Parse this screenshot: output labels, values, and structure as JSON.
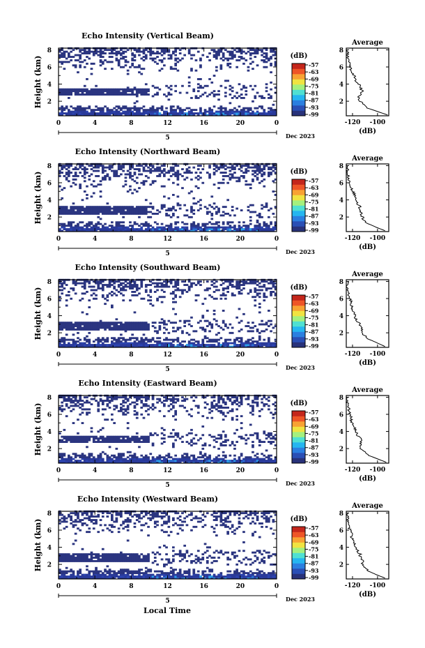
{
  "chart_data": {
    "type": "heatmap",
    "common": {
      "ylabel": "Height (km)",
      "yticks": [
        "2",
        "4",
        "6",
        "8"
      ],
      "xticks": [
        "0",
        "4",
        "8",
        "12",
        "16",
        "20",
        "0"
      ],
      "xlim": [
        0,
        24
      ],
      "ylim": [
        0.3,
        8.2
      ],
      "day_label": "5",
      "date_label": "Dec 2023",
      "xlabel": "Local Time",
      "colorbar_unit": "(dB)",
      "colorbar_ticks": [
        "-57",
        "-63",
        "-69",
        "-75",
        "-81",
        "-87",
        "-93",
        "-99"
      ],
      "colorbar_colors": [
        "#28327a",
        "#2a4fb5",
        "#2b7fe0",
        "#25b6f0",
        "#4fe0d2",
        "#a4f07e",
        "#f0e341",
        "#f8a233",
        "#ee5527",
        "#c4261b"
      ],
      "avg_title": "Average",
      "avg_xlabel": "(dB)",
      "avg_xticks": [
        "-120",
        "-100"
      ],
      "avg_yticks": [
        "2",
        "4",
        "6",
        "8"
      ],
      "avg_xlim": [
        -125,
        -91
      ],
      "avg_ylim": [
        0.3,
        8.2
      ]
    },
    "panels": [
      {
        "title": "Echo Intensity (Vertical Beam)",
        "seed": 11,
        "lower_layer": [
          2.6,
          3.5,
          9.8
        ],
        "avg_profile": [
          [
            0.4,
            -92
          ],
          [
            0.8,
            -100
          ],
          [
            1.2,
            -108
          ],
          [
            1.6,
            -111
          ],
          [
            2.0,
            -114
          ],
          [
            2.4,
            -115
          ],
          [
            2.8,
            -114
          ],
          [
            3.2,
            -112
          ],
          [
            3.6,
            -114
          ],
          [
            4.0,
            -115
          ],
          [
            4.4,
            -118
          ],
          [
            4.8,
            -118
          ],
          [
            5.2,
            -120
          ],
          [
            5.6,
            -121
          ],
          [
            6.0,
            -122
          ],
          [
            6.4,
            -123
          ],
          [
            6.8,
            -123
          ],
          [
            7.2,
            -124
          ],
          [
            7.6,
            -124
          ],
          [
            8.0,
            -124
          ]
        ]
      },
      {
        "title": "Echo Intensity (Northward Beam)",
        "seed": 23,
        "lower_layer": [
          2.2,
          3.2,
          10.0
        ],
        "avg_profile": [
          [
            0.4,
            -94
          ],
          [
            0.8,
            -101
          ],
          [
            1.2,
            -107
          ],
          [
            1.6,
            -111
          ],
          [
            2.0,
            -112
          ],
          [
            2.4,
            -113
          ],
          [
            2.8,
            -115
          ],
          [
            3.2,
            -114
          ],
          [
            3.6,
            -116
          ],
          [
            4.0,
            -117
          ],
          [
            4.4,
            -118
          ],
          [
            4.8,
            -119
          ],
          [
            5.2,
            -121
          ],
          [
            5.6,
            -121
          ],
          [
            6.0,
            -122
          ],
          [
            6.4,
            -123
          ],
          [
            6.8,
            -123
          ],
          [
            7.2,
            -124
          ],
          [
            7.6,
            -124
          ],
          [
            8.0,
            -124
          ]
        ]
      },
      {
        "title": "Echo Intensity (Southward Beam)",
        "seed": 37,
        "lower_layer": [
          2.2,
          3.2,
          10.0
        ],
        "avg_profile": [
          [
            0.4,
            -94
          ],
          [
            0.8,
            -100
          ],
          [
            1.2,
            -106
          ],
          [
            1.6,
            -110
          ],
          [
            2.0,
            -113
          ],
          [
            2.4,
            -112
          ],
          [
            2.8,
            -114
          ],
          [
            3.2,
            -115
          ],
          [
            3.6,
            -117
          ],
          [
            4.0,
            -118
          ],
          [
            4.4,
            -119
          ],
          [
            4.8,
            -120
          ],
          [
            5.2,
            -121
          ],
          [
            5.6,
            -121
          ],
          [
            6.0,
            -122
          ],
          [
            6.4,
            -123
          ],
          [
            6.8,
            -123
          ],
          [
            7.2,
            -124
          ],
          [
            7.6,
            -124
          ],
          [
            8.0,
            -124
          ]
        ]
      },
      {
        "title": "Echo Intensity (Eastward Beam)",
        "seed": 41,
        "lower_layer": [
          2.6,
          3.5,
          9.8
        ],
        "avg_profile": [
          [
            0.4,
            -93
          ],
          [
            0.8,
            -100
          ],
          [
            1.2,
            -107
          ],
          [
            1.6,
            -110
          ],
          [
            2.0,
            -113
          ],
          [
            2.4,
            -114
          ],
          [
            2.8,
            -113
          ],
          [
            3.2,
            -114
          ],
          [
            3.6,
            -116
          ],
          [
            4.0,
            -117
          ],
          [
            4.4,
            -118
          ],
          [
            4.8,
            -119
          ],
          [
            5.2,
            -121
          ],
          [
            5.6,
            -121
          ],
          [
            6.0,
            -122
          ],
          [
            6.4,
            -123
          ],
          [
            6.8,
            -123
          ],
          [
            7.2,
            -124
          ],
          [
            7.6,
            -124
          ],
          [
            8.0,
            -124
          ]
        ]
      },
      {
        "title": "Echo Intensity (Westward Beam)",
        "seed": 53,
        "lower_layer": [
          2.2,
          3.3,
          10.0
        ],
        "avg_profile": [
          [
            0.4,
            -94
          ],
          [
            0.8,
            -101
          ],
          [
            1.2,
            -107
          ],
          [
            1.6,
            -110
          ],
          [
            2.0,
            -112
          ],
          [
            2.4,
            -112
          ],
          [
            2.8,
            -114
          ],
          [
            3.2,
            -114
          ],
          [
            3.6,
            -116
          ],
          [
            4.0,
            -117
          ],
          [
            4.4,
            -118
          ],
          [
            4.8,
            -120
          ],
          [
            5.2,
            -121
          ],
          [
            5.6,
            -121
          ],
          [
            6.0,
            -122
          ],
          [
            6.4,
            -123
          ],
          [
            6.8,
            -123
          ],
          [
            7.2,
            -124
          ],
          [
            7.6,
            -124
          ],
          [
            8.0,
            -124
          ]
        ]
      }
    ]
  }
}
